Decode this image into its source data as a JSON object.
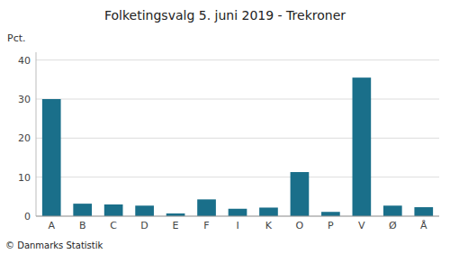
{
  "chart_data": {
    "type": "bar",
    "title": "Folketingsvalg 5. juni 2019 - Trekroner",
    "ylabel": "Pct.",
    "footer": "© Danmarks Statistik",
    "categories": [
      "A",
      "B",
      "C",
      "D",
      "E",
      "F",
      "I",
      "K",
      "O",
      "P",
      "V",
      "Ø",
      "Å"
    ],
    "values": [
      30.0,
      3.2,
      3.0,
      2.7,
      0.7,
      4.3,
      1.9,
      2.2,
      11.3,
      1.1,
      35.5,
      2.7,
      2.3
    ],
    "color": "#1a6f8a",
    "ylim": [
      0,
      42
    ],
    "yticks": [
      0,
      10,
      20,
      30,
      40
    ],
    "grid": true
  }
}
